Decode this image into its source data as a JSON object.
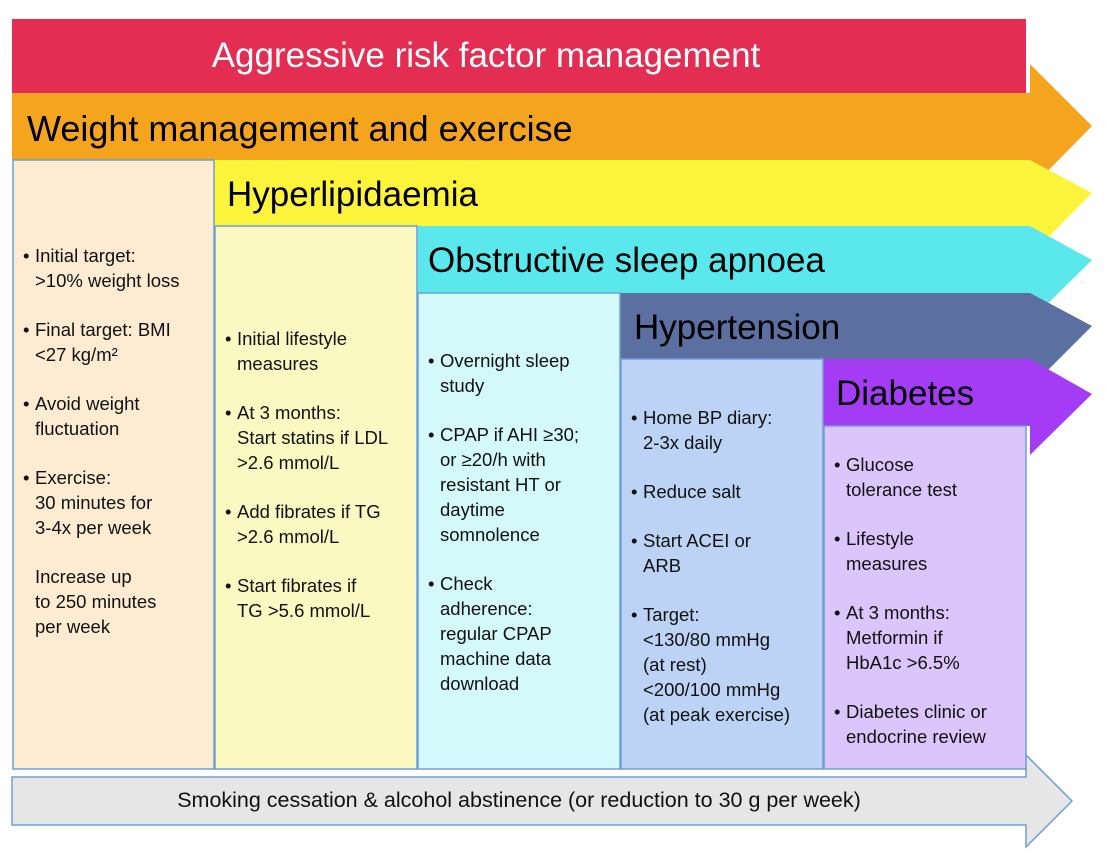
{
  "colors": {
    "top_banner": "#e42d52",
    "weight": "#f5a41d",
    "weight_panel": "#fdecd2",
    "hyperlipidaemia": "#fbf43a",
    "hyperlipidaemia_panel": "#fbf8c2",
    "osa": "#5ae8ed",
    "osa_panel": "#d3f9fb",
    "hypertension": "#5b6fa0",
    "hypertension_panel": "#bcd3f6",
    "diabetes": "#a53cf5",
    "diabetes_panel": "#dcc5fb",
    "smoking": "#e6e6e6"
  },
  "banner": {
    "title": "Aggressive risk factor management"
  },
  "weight": {
    "title": "Weight management and exercise",
    "items": [
      {
        "lines": [
          "Initial target:",
          ">10% weight loss"
        ],
        "bullet": true
      },
      {
        "lines": [
          "Final target: BMI",
          "<27 kg/m²"
        ],
        "bullet": true
      },
      {
        "lines": [
          "Avoid weight",
          "fluctuation"
        ],
        "bullet": true
      },
      {
        "lines": [
          "Exercise:",
          "30 minutes for",
          "3-4x per week"
        ],
        "bullet": true
      },
      {
        "lines": [
          "Increase up",
          "to 250 minutes",
          "per week"
        ],
        "bullet": false
      }
    ]
  },
  "hyperlipidaemia": {
    "title": "Hyperlipidaemia",
    "items": [
      {
        "lines": [
          "Initial lifestyle",
          "measures"
        ],
        "bullet": true
      },
      {
        "lines": [
          "At 3 months:",
          "Start statins if LDL",
          ">2.6 mmol/L"
        ],
        "bullet": true
      },
      {
        "lines": [
          "Add fibrates if TG",
          ">2.6 mmol/L"
        ],
        "bullet": true
      },
      {
        "lines": [
          "Start fibrates if",
          "TG >5.6 mmol/L"
        ],
        "bullet": true
      }
    ]
  },
  "osa": {
    "title": "Obstructive sleep apnoea",
    "items": [
      {
        "lines": [
          "Overnight sleep",
          "study"
        ],
        "bullet": true
      },
      {
        "lines": [
          "CPAP if AHI ≥30;",
          "or ≥20/h with",
          "resistant HT or",
          "daytime",
          "somnolence"
        ],
        "bullet": true
      },
      {
        "lines": [
          "Check",
          "adherence:",
          "regular CPAP",
          "machine data",
          "download"
        ],
        "bullet": true
      }
    ]
  },
  "hypertension": {
    "title": "Hypertension",
    "items": [
      {
        "lines": [
          "Home BP diary:",
          "2-3x daily"
        ],
        "bullet": true
      },
      {
        "lines": [
          "Reduce salt"
        ],
        "bullet": true
      },
      {
        "lines": [
          "Start ACEI or",
          "ARB"
        ],
        "bullet": true
      },
      {
        "lines": [
          "Target:",
          "<130/80 mmHg",
          "(at rest)",
          "<200/100 mmHg",
          "(at peak exercise)"
        ],
        "bullet": true
      }
    ]
  },
  "diabetes": {
    "title": "Diabetes",
    "items": [
      {
        "lines": [
          "Glucose",
          "tolerance test"
        ],
        "bullet": true
      },
      {
        "lines": [
          "Lifestyle",
          "measures"
        ],
        "bullet": true
      },
      {
        "lines": [
          "At 3 months:",
          "Metformin if",
          "HbA1c >6.5%"
        ],
        "bullet": true
      },
      {
        "lines": [
          "Diabetes clinic or",
          "endocrine review"
        ],
        "bullet": true
      }
    ]
  },
  "smoking": {
    "text": "Smoking cessation & alcohol abstinence (or reduction to 30 g per week)"
  }
}
